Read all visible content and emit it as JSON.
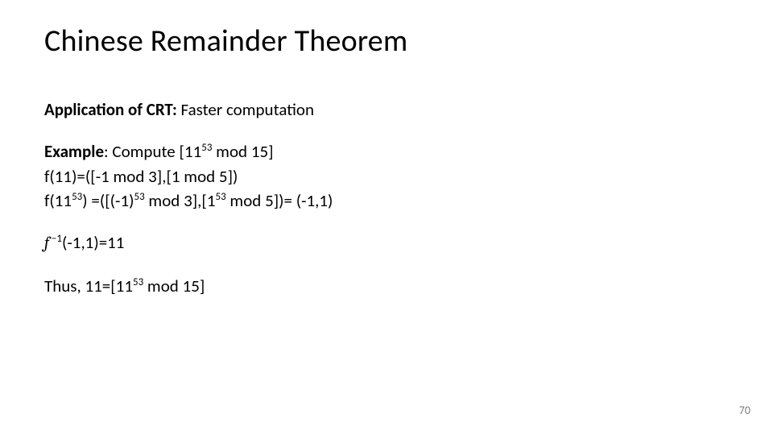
{
  "title": "Chinese Remainder Theorem",
  "app_label_bold": "Application of CRT:",
  "app_label_rest": " Faster computation",
  "example_label": "Example",
  "example_rest": ": Compute [11",
  "example_sup1": "53",
  "example_tail": " mod 15]",
  "line_f11": "f(11)=([-1 mod 3],[1 mod 5])",
  "line_f1153_a": "f(11",
  "line_f1153_sup1": "53",
  "line_f1153_b": ") =([(-1)",
  "line_f1153_sup2": "53",
  "line_f1153_c": " mod 3],[1",
  "line_f1153_sup3": "53",
  "line_f1153_d": " mod 5])= (-1,1)",
  "finv_f": "f",
  "finv_sup": " −1",
  "finv_rest": "(-1,1)=11",
  "thus_a": "Thus, 11=[11",
  "thus_sup": "53",
  "thus_b": " mod 15]",
  "pagenum": "70",
  "colors": {
    "text": "#000000",
    "pagenum": "#808080",
    "background": "#ffffff"
  },
  "fontsize": {
    "title": 38,
    "body": 21,
    "pagenum": 14
  }
}
